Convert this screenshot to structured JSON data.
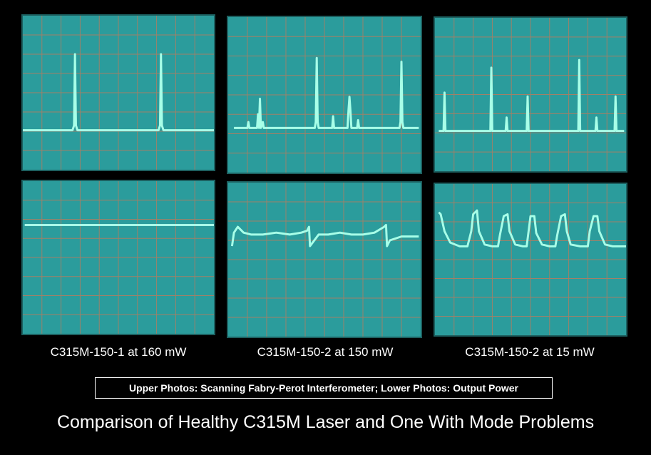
{
  "panels": [
    {
      "label": "C315M-150-1 at 160 mW"
    },
    {
      "label": "C315M-150-2 at 150 mW"
    },
    {
      "label": "C315M-150-2 at 15 mW"
    }
  ],
  "legend": "Upper Photos: Scanning Fabry-Perot Interferometer; Lower Photos: Output Power",
  "title": "Comparison of Healthy C315M Laser and One With Mode Problems",
  "colors": {
    "screen": "#2b9c9c",
    "grid": "#c07a5a",
    "trace": "#a8ffe8"
  }
}
